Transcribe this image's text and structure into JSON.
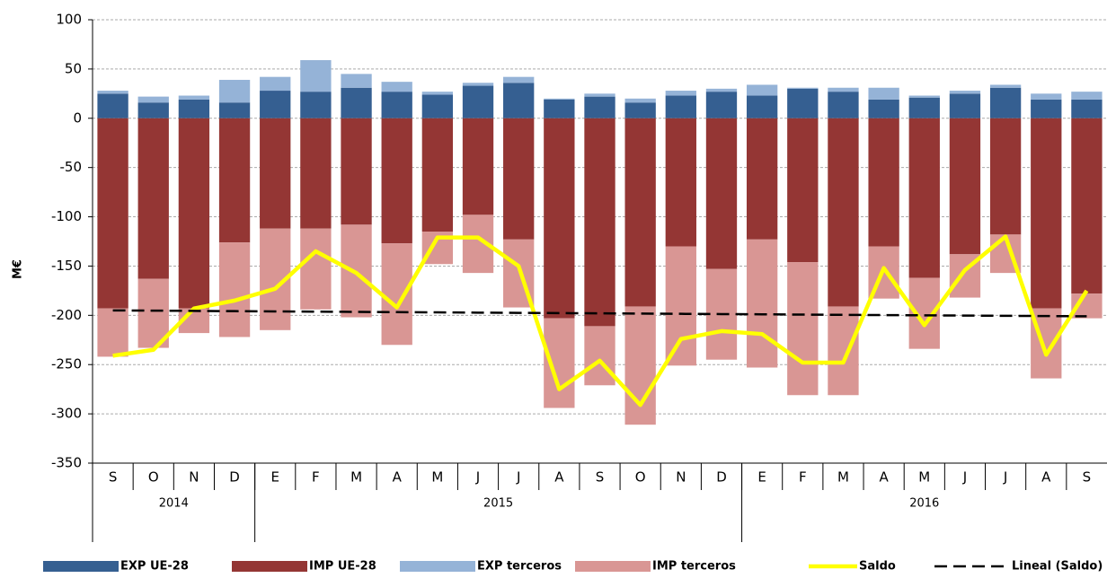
{
  "chart_data": {
    "type": "bar",
    "y_label": "M€",
    "categories": [
      "S",
      "O",
      "N",
      "D",
      "E",
      "F",
      "M",
      "A",
      "M",
      "J",
      "J",
      "A",
      "S",
      "O",
      "N",
      "D",
      "E",
      "F",
      "M",
      "A",
      "M",
      "J",
      "J",
      "A",
      "S"
    ],
    "groups": [
      {
        "label": "2014",
        "span": 4
      },
      {
        "label": "2015",
        "span": 12
      },
      {
        "label": "2016",
        "span": 9
      }
    ],
    "series": [
      {
        "name": "EXP UE-28",
        "type": "bar",
        "color": "#355f91",
        "values": [
          25,
          16,
          19,
          16,
          28,
          27,
          31,
          27,
          24,
          33,
          36,
          19,
          22,
          16,
          23,
          27,
          23,
          30,
          27,
          19,
          21,
          25,
          31,
          19,
          19
        ]
      },
      {
        "name": "IMP UE-28",
        "type": "bar",
        "color": "#943634",
        "values": [
          -193,
          -163,
          -193,
          -126,
          -112,
          -112,
          -108,
          -127,
          -115,
          -98,
          -123,
          -203,
          -211,
          -191,
          -130,
          -153,
          -123,
          -146,
          -191,
          -130,
          -162,
          -138,
          -118,
          -193,
          -178
        ]
      },
      {
        "name": "EXP terceros",
        "type": "bar",
        "color": "#95b3d7",
        "values": [
          3,
          6,
          4,
          23,
          14,
          32,
          14,
          10,
          3,
          3,
          6,
          1,
          3,
          4,
          5,
          3,
          11,
          1,
          4,
          12,
          2,
          3,
          3,
          6,
          8
        ]
      },
      {
        "name": "IMP terceros",
        "type": "bar",
        "color": "#d99694",
        "values": [
          -49,
          -70,
          -25,
          -96,
          -103,
          -82,
          -94,
          -103,
          -33,
          -59,
          -69,
          -91,
          -60,
          -120,
          -121,
          -92,
          -130,
          -135,
          -90,
          -53,
          -72,
          -44,
          -39,
          -71,
          -25
        ]
      },
      {
        "name": "Saldo",
        "type": "line",
        "color": "#ffff00",
        "values": [
          -241,
          -235,
          -193,
          -185,
          -173,
          -135,
          -157,
          -192,
          -121,
          -121,
          -150,
          -275,
          -246,
          -291,
          -224,
          -216,
          -219,
          -248,
          -248,
          -152,
          -210,
          -154,
          -120,
          -240,
          -175
        ]
      },
      {
        "name": "Lineal (Saldo)",
        "type": "line",
        "color": "#000000",
        "dashed": true,
        "values": [
          -195,
          -195.25,
          -195.5,
          -195.75,
          -196,
          -196.25,
          -196.5,
          -196.75,
          -197,
          -197.25,
          -197.5,
          -197.75,
          -198,
          -198.25,
          -198.5,
          -198.75,
          -199,
          -199.25,
          -199.5,
          -199.75,
          -200,
          -200.25,
          -200.5,
          -200.75,
          -201
        ]
      }
    ],
    "ylim": [
      -350,
      100
    ],
    "yticks": [
      -350,
      -300,
      -250,
      -200,
      -150,
      -100,
      -50,
      0,
      50,
      100
    ],
    "grid": true,
    "legend": "bottom"
  }
}
